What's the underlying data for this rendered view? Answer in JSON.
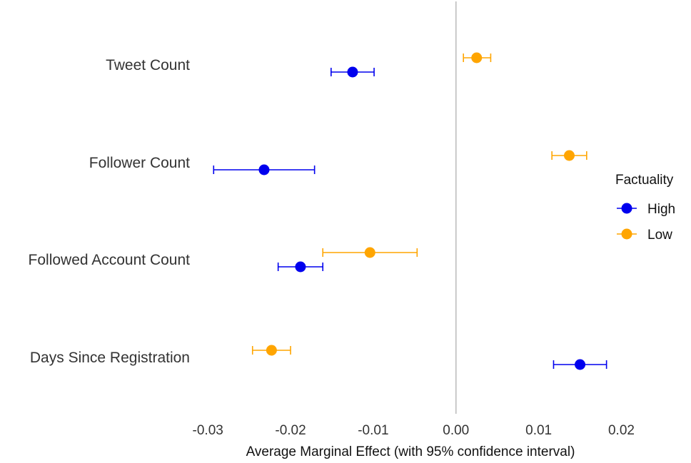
{
  "chart_data": {
    "type": "scatter",
    "subtype": "dot-and-whisker",
    "title": "",
    "xlabel": "Average Marginal Effect (with 95% confidence interval)",
    "ylabel": "",
    "xlim": [
      -0.032,
      0.026
    ],
    "xticks": [
      -0.03,
      -0.02,
      -0.01,
      0.0,
      0.01,
      0.02
    ],
    "xtick_labels": [
      "-0.03",
      "-0.02",
      "-0.01",
      "0.00",
      "0.01",
      "0.02"
    ],
    "reference_line_x": 0.0,
    "grid": false,
    "categories": [
      "Tweet Count",
      "Follower Count",
      "Followed Account Count",
      "Days Since Registration"
    ],
    "legend": {
      "title": "Factuality",
      "placement": "right",
      "entries": [
        "High",
        "Low"
      ]
    },
    "series": [
      {
        "name": "High",
        "color": "#0000ee",
        "points": [
          {
            "category": "Tweet Count",
            "estimate": -0.0125,
            "ci_low": -0.0151,
            "ci_high": -0.0099
          },
          {
            "category": "Follower Count",
            "estimate": -0.0232,
            "ci_low": -0.0293,
            "ci_high": -0.0171
          },
          {
            "category": "Followed Account Count",
            "estimate": -0.0188,
            "ci_low": -0.0215,
            "ci_high": -0.0161
          },
          {
            "category": "Days Since Registration",
            "estimate": 0.015,
            "ci_low": 0.0118,
            "ci_high": 0.0182
          }
        ]
      },
      {
        "name": "Low",
        "color": "#ffa500",
        "points": [
          {
            "category": "Tweet Count",
            "estimate": 0.0025,
            "ci_low": 0.0009,
            "ci_high": 0.0042
          },
          {
            "category": "Follower Count",
            "estimate": 0.0137,
            "ci_low": 0.0116,
            "ci_high": 0.0158
          },
          {
            "category": "Followed Account Count",
            "estimate": -0.0104,
            "ci_low": -0.0161,
            "ci_high": -0.0047
          },
          {
            "category": "Days Since Registration",
            "estimate": -0.0223,
            "ci_low": -0.0246,
            "ci_high": -0.02
          }
        ]
      }
    ]
  }
}
